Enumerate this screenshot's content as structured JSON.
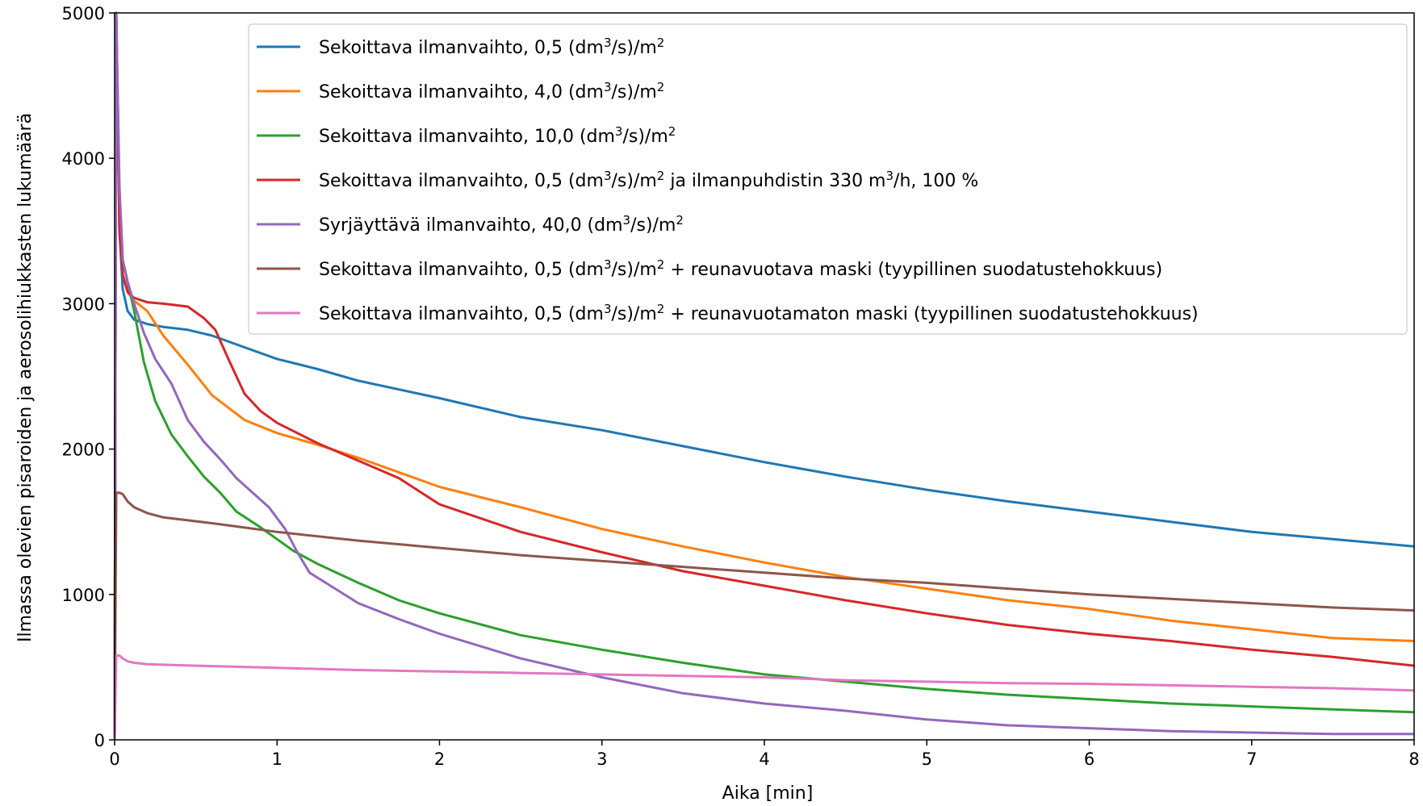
{
  "chart_data": {
    "type": "line",
    "title": "",
    "xlabel": "Aika [min]",
    "ylabel": "Ilmassa olevien pisaroiden ja aerosolihiukkasten lukumäärä",
    "xlim": [
      0,
      8
    ],
    "ylim": [
      0,
      5000
    ],
    "xticks": [
      "0",
      "1",
      "2",
      "3",
      "4",
      "5",
      "6",
      "7",
      "8"
    ],
    "yticks": [
      "0",
      "1000",
      "2000",
      "3000",
      "4000",
      "5000"
    ],
    "grid": false,
    "legend_position": "top-right",
    "series": [
      {
        "name": "Sekoittava ilmanvaihto, 0,5 (dm³/s)/m²",
        "legend": {
          "pre": "Sekoittava ilmanvaihto, 0,5 (dm",
          "sup1": "3",
          "mid": "/s)/m",
          "sup2": "2",
          "post": ""
        },
        "color": "#1f77b4",
        "x": [
          0,
          0.01,
          0.03,
          0.05,
          0.08,
          0.12,
          0.2,
          0.3,
          0.45,
          0.6,
          0.8,
          1.0,
          1.25,
          1.5,
          2.0,
          2.5,
          3.0,
          3.5,
          4.0,
          4.5,
          5.0,
          5.5,
          6.0,
          6.5,
          7.0,
          7.5,
          8.0
        ],
        "y": [
          0,
          5000,
          3500,
          3100,
          2950,
          2890,
          2860,
          2840,
          2820,
          2780,
          2700,
          2620,
          2550,
          2470,
          2350,
          2220,
          2130,
          2020,
          1910,
          1810,
          1720,
          1640,
          1570,
          1500,
          1430,
          1380,
          1330
        ]
      },
      {
        "name": "Sekoittava ilmanvaihto, 4,0 (dm³/s)/m²",
        "legend": {
          "pre": "Sekoittava ilmanvaihto, 4,0 (dm",
          "sup1": "3",
          "mid": "/s)/m",
          "sup2": "2",
          "post": ""
        },
        "color": "#ff7f0e",
        "x": [
          0,
          0.01,
          0.03,
          0.05,
          0.08,
          0.12,
          0.2,
          0.3,
          0.45,
          0.6,
          0.8,
          1.0,
          1.25,
          1.5,
          2.0,
          2.5,
          3.0,
          3.5,
          4.0,
          4.5,
          5.0,
          5.5,
          6.0,
          6.5,
          7.0,
          7.5,
          8.0
        ],
        "y": [
          0,
          5000,
          3500,
          3200,
          3080,
          3020,
          2950,
          2780,
          2580,
          2370,
          2200,
          2110,
          2030,
          1940,
          1740,
          1600,
          1450,
          1330,
          1220,
          1120,
          1040,
          960,
          900,
          820,
          760,
          700,
          680
        ]
      },
      {
        "name": "Sekoittava ilmanvaihto, 10,0 (dm³/s)/m²",
        "legend": {
          "pre": "Sekoittava ilmanvaihto, 10,0 (dm",
          "sup1": "3",
          "mid": "/s)/m",
          "sup2": "2",
          "post": ""
        },
        "color": "#2ca02c",
        "x": [
          0,
          0.01,
          0.03,
          0.05,
          0.08,
          0.12,
          0.18,
          0.25,
          0.35,
          0.45,
          0.55,
          0.65,
          0.75,
          0.9,
          1.0,
          1.1,
          1.25,
          1.5,
          1.75,
          2.0,
          2.5,
          3.0,
          3.5,
          4.0,
          4.5,
          5.0,
          5.5,
          6.0,
          6.5,
          7.0,
          7.5,
          8.0
        ],
        "y": [
          0,
          5000,
          3700,
          3300,
          3150,
          2950,
          2600,
          2330,
          2100,
          1950,
          1810,
          1700,
          1570,
          1460,
          1380,
          1300,
          1210,
          1080,
          960,
          870,
          720,
          620,
          530,
          450,
          400,
          350,
          310,
          280,
          250,
          230,
          210,
          190
        ]
      },
      {
        "name": "Sekoittava ilmanvaihto, 0,5 (dm³/s)/m² ja ilmanpuhdistin 330 m³/h, 100 %",
        "legend": {
          "pre": "Sekoittava ilmanvaihto, 0,5 (dm",
          "sup1": "3",
          "mid": "/s)/m",
          "sup2": "2",
          "post": " ja ilmanpuhdistin 330 m",
          "sup3": "3",
          "post2": "/h, 100 %"
        },
        "color": "#d62728",
        "x": [
          0,
          0.01,
          0.03,
          0.05,
          0.08,
          0.12,
          0.2,
          0.3,
          0.45,
          0.55,
          0.62,
          0.7,
          0.8,
          0.9,
          1.0,
          1.25,
          1.5,
          1.75,
          2.0,
          2.5,
          3.0,
          3.5,
          4.0,
          4.5,
          5.0,
          5.5,
          6.0,
          6.5,
          7.0,
          7.5,
          8.0
        ],
        "y": [
          0,
          5000,
          3500,
          3200,
          3080,
          3040,
          3010,
          3000,
          2980,
          2900,
          2820,
          2620,
          2380,
          2260,
          2180,
          2040,
          1920,
          1800,
          1620,
          1430,
          1290,
          1160,
          1060,
          960,
          870,
          790,
          730,
          680,
          620,
          570,
          510
        ]
      },
      {
        "name": "Syrjäyttävä ilmanvaihto, 40,0 (dm³/s)/m²",
        "legend": {
          "pre": "Syrjäyttävä ilmanvaihto, 40,0 (dm",
          "sup1": "3",
          "mid": "/s)/m",
          "sup2": "2",
          "post": ""
        },
        "color": "#9467bd",
        "x": [
          0,
          0.01,
          0.03,
          0.05,
          0.08,
          0.12,
          0.18,
          0.25,
          0.35,
          0.45,
          0.55,
          0.65,
          0.75,
          0.85,
          0.95,
          1.05,
          1.12,
          1.2,
          1.3,
          1.5,
          1.75,
          2.0,
          2.5,
          3.0,
          3.5,
          4.0,
          4.5,
          5.0,
          5.5,
          6.0,
          6.5,
          7.0,
          7.5,
          8.0
        ],
        "y": [
          0,
          5000,
          3800,
          3300,
          3150,
          3000,
          2800,
          2620,
          2450,
          2200,
          2050,
          1930,
          1800,
          1700,
          1600,
          1450,
          1300,
          1150,
          1080,
          940,
          830,
          730,
          560,
          430,
          320,
          250,
          200,
          140,
          100,
          80,
          60,
          50,
          40,
          40
        ]
      },
      {
        "name": "Sekoittava ilmanvaihto, 0,5 (dm³/s)/m² + reunavuotava maski (tyypillinen suodatustehokkuus)",
        "legend": {
          "pre": "Sekoittava ilmanvaihto, 0,5 (dm",
          "sup1": "3",
          "mid": "/s)/m",
          "sup2": "2",
          "post": " + reunavuotava maski (tyypillinen suodatustehokkuus)"
        },
        "color": "#8c564b",
        "x": [
          0,
          0.01,
          0.03,
          0.05,
          0.08,
          0.12,
          0.2,
          0.3,
          0.45,
          0.6,
          0.8,
          1.0,
          1.5,
          2.0,
          2.5,
          3.0,
          3.5,
          4.0,
          4.5,
          5.0,
          5.5,
          6.0,
          6.5,
          7.0,
          7.5,
          8.0
        ],
        "y": [
          0,
          1700,
          1700,
          1690,
          1640,
          1600,
          1560,
          1530,
          1510,
          1490,
          1460,
          1430,
          1370,
          1320,
          1270,
          1230,
          1190,
          1150,
          1110,
          1080,
          1040,
          1000,
          970,
          940,
          910,
          890
        ]
      },
      {
        "name": "Sekoittava ilmanvaihto, 0,5 (dm³/s)/m² + reunavuotamaton maski (tyypillinen suodatustehokkuus)",
        "legend": {
          "pre": "Sekoittava ilmanvaihto, 0,5 (dm",
          "sup1": "3",
          "mid": "/s)/m",
          "sup2": "2",
          "post": " + reunavuotamaton maski (tyypillinen suodatustehokkuus)"
        },
        "color": "#e377c2",
        "x": [
          0,
          0.01,
          0.03,
          0.05,
          0.08,
          0.12,
          0.2,
          0.5,
          1.0,
          1.5,
          2.0,
          2.5,
          3.0,
          3.5,
          4.0,
          4.5,
          5.0,
          5.5,
          6.0,
          6.5,
          7.0,
          7.5,
          8.0
        ],
        "y": [
          0,
          580,
          580,
          560,
          540,
          530,
          520,
          510,
          495,
          480,
          470,
          460,
          450,
          440,
          430,
          410,
          400,
          390,
          385,
          375,
          365,
          355,
          340
        ]
      }
    ]
  }
}
